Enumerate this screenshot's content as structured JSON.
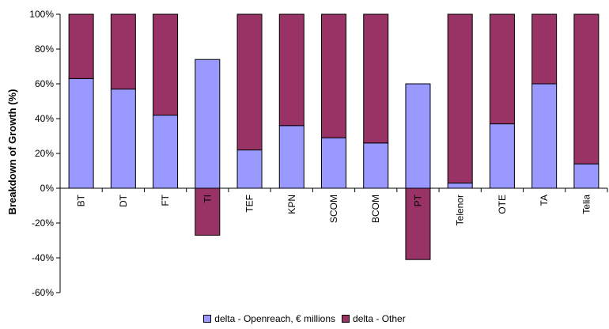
{
  "chart_data": {
    "type": "bar",
    "stacked": true,
    "title": "",
    "xlabel": "",
    "ylabel": "Breakdown of Growth (%)",
    "ylim": [
      -60,
      100
    ],
    "yticks": [
      -60,
      -40,
      -20,
      0,
      20,
      40,
      60,
      80,
      100
    ],
    "ytick_labels": [
      "-60%",
      "-40%",
      "-20%",
      "0%",
      "20%",
      "40%",
      "60%",
      "80%",
      "100%"
    ],
    "grid": false,
    "legend_position": "bottom",
    "categories": [
      "BT",
      "DT",
      "FT",
      "TI",
      "TEF",
      "KPN",
      "SCOM",
      "BCOM",
      "PT",
      "Telenor",
      "OTE",
      "TA",
      "Telia"
    ],
    "series": [
      {
        "name": "delta - Openreach, € millions",
        "color": "#9999ff",
        "values": [
          63,
          57,
          42,
          74,
          22,
          36,
          29,
          26,
          60,
          3,
          37,
          60,
          14
        ]
      },
      {
        "name": "delta - Other",
        "color": "#993366",
        "values": [
          37,
          43,
          58,
          -27,
          78,
          64,
          71,
          74,
          -41,
          97,
          63,
          40,
          86
        ]
      }
    ]
  }
}
